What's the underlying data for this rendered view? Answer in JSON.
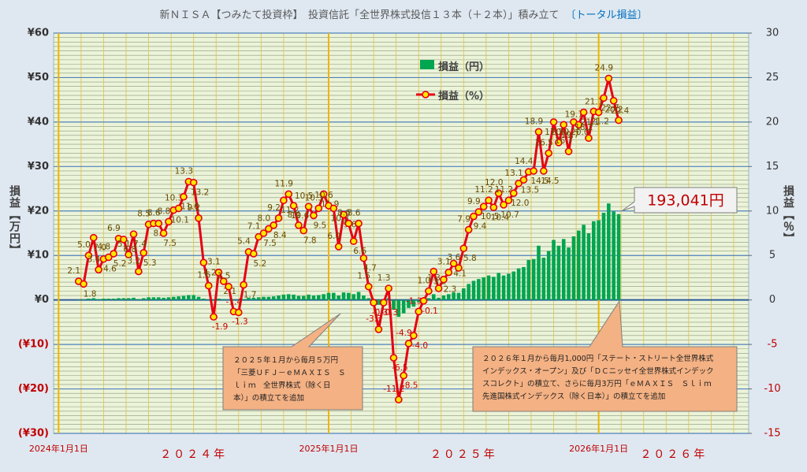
{
  "chart_data": {
    "type": "bar-line",
    "title": "新ＮＩＳＡ【つみたて投資枠】　投資信託「全世界株式投信１３本（＋２本）」積み立て",
    "subtitle": "〔トータル損益〕",
    "y_label": "損益【万円】",
    "y2_label": "損益【％】",
    "ylim": [
      -30,
      60
    ],
    "yticks": [
      {
        "value": -30,
        "label": "(¥30)"
      },
      {
        "value": -20,
        "label": "(¥20)"
      },
      {
        "value": -10,
        "label": "(¥10)"
      },
      {
        "value": 0,
        "label": "¥0"
      },
      {
        "value": 10,
        "label": "¥10"
      },
      {
        "value": 20,
        "label": "¥20"
      },
      {
        "value": 30,
        "label": "¥30"
      },
      {
        "value": 40,
        "label": "¥40"
      },
      {
        "value": 50,
        "label": "¥50"
      },
      {
        "value": 60,
        "label": "¥60"
      }
    ],
    "y2lim": [
      -15,
      30
    ],
    "y2ticks": [
      -15,
      -10,
      -5,
      0,
      5,
      10,
      15,
      20,
      25,
      30
    ],
    "xlim": [
      -5,
      134
    ],
    "xticks": [
      {
        "value": -4,
        "label": "2024年1月1日"
      },
      {
        "value": 50,
        "label": "2025年1月1日"
      },
      {
        "value": 104,
        "label": "2026年1月1日"
      }
    ],
    "x_period_labels": [
      "２０２４年",
      "２０２５年",
      "２０２６年"
    ],
    "grid": true,
    "series": [
      {
        "name": "損益（円）",
        "color": "#00a550",
        "axis": "y",
        "values": [
          0.1,
          0.1,
          0.3,
          0.4,
          0.2,
          0.3,
          0.3,
          0.3,
          0.4,
          0.4,
          0.4,
          0.5,
          0.2,
          0.4,
          0.6,
          0.6,
          0.6,
          0.5,
          0.6,
          0.7,
          0.8,
          0.9,
          1.1,
          1.1,
          0.7,
          0.3,
          0.1,
          -0.2,
          0.3,
          0.2,
          0.1,
          -0.1,
          -0.1,
          0.2,
          0.5,
          0.5,
          0.6,
          0.7,
          0.7,
          0.8,
          1.0,
          1.2,
          1.3,
          1.2,
          0.9,
          0.9,
          1.2,
          1.0,
          1.1,
          1.3,
          1.6,
          1.6,
          1.0,
          1.7,
          1.6,
          1.3,
          1.8,
          1.0,
          0.4,
          -0.1,
          -1.1,
          -0.1,
          0.4,
          -2.2,
          -3.8,
          -3.0,
          -1.8,
          -1.5,
          -0.5,
          0.0,
          0.4,
          1.3,
          0.5,
          1.0,
          1.3,
          1.7,
          1.6,
          2.6,
          3.6,
          4.3,
          4.7,
          5.1,
          5.5,
          5.2,
          6.1,
          5.5,
          5.9,
          6.4,
          7.1,
          7.4,
          9.0,
          9.2,
          12.2,
          9.5,
          11.0,
          13.5,
          12.2,
          13.7,
          11.8,
          14.3,
          15.6,
          16.9,
          15.0,
          17.7,
          17.9,
          19.6,
          21.7,
          19.9,
          19.3
        ]
      },
      {
        "name": "損益（%）",
        "color": "#e60012",
        "marker_color": "#ffe600",
        "axis": "y2",
        "values": [
          2.1,
          1.8,
          5.0,
          7.0,
          3.4,
          4.6,
          4.8,
          5.2,
          6.9,
          6.8,
          5.1,
          7.4,
          3.2,
          5.3,
          8.5,
          8.6,
          8.6,
          7.5,
          8.8,
          10.1,
          10.3,
          11.6,
          13.3,
          13.2,
          9.2,
          4.2,
          1.6,
          -1.9,
          3.1,
          2.1,
          1.5,
          -1.3,
          -1.4,
          1.7,
          5.4,
          5.2,
          7.1,
          7.5,
          8.0,
          8.4,
          9.2,
          11.2,
          11.9,
          10.6,
          8.4,
          7.8,
          10.5,
          9.5,
          10.3,
          11.9,
          10.6,
          10.3,
          6.0,
          9.6,
          8.6,
          6.6,
          8.6,
          4.7,
          1.5,
          -0.3,
          -3.3,
          -0.3,
          1.3,
          -6.5,
          -11.2,
          -8.5,
          -4.9,
          -4.0,
          -1.3,
          -0.1,
          1.0,
          3.2,
          1.3,
          2.3,
          3.1,
          4.1,
          3.6,
          5.8,
          7.9,
          9.4,
          9.9,
          10.5,
          11.2,
          10.4,
          12.0,
          10.7,
          11.2,
          12.0,
          13.1,
          13.5,
          14.4,
          14.5,
          18.9,
          14.5,
          16.5,
          20.0,
          17.7,
          19.7,
          16.7,
          20.0,
          19.7,
          21.1,
          18.2,
          21.2,
          21.1,
          22.7,
          24.9,
          22.4,
          20.2
        ],
        "value_labels": [
          "2.1",
          "1.8",
          "5.0",
          "7.0",
          "3.4",
          "4.6",
          "4.8",
          "5.2",
          "6.9",
          "6.8",
          "5.1",
          "7.4",
          "3.2",
          "5.3",
          "8.5",
          "8.6",
          "8.6",
          "7.5",
          "8.8",
          "10.1",
          "10.3",
          "11.6",
          "13.3",
          "13.2",
          "9.2",
          "4.2",
          "1.6",
          "-1.9",
          "3.1",
          "2.1",
          "1.5",
          "-1.3",
          "-1.4",
          "1.7",
          "5.4",
          "5.2",
          "7.1",
          "7.5",
          "8.0",
          "8.4",
          "9.2",
          "11.2",
          "11.9",
          "10.6",
          "8.4",
          "7.8",
          "10.5",
          "9.5",
          "10.3",
          "11.9",
          "10.6",
          "10.3",
          "6.0",
          "9.6",
          "8.6",
          "6.6",
          "8.6",
          "4.7",
          "1.5",
          "-0.3",
          "-3.3",
          "-0.3",
          "1.3",
          "-6.5",
          "-11.2",
          "-8.5",
          "-4.9",
          "-4.0",
          "-1.3",
          "-0.1",
          "1.0",
          "3.2",
          "1.3",
          "2.3",
          "3.1",
          "4.1",
          "3.6",
          "5.8",
          "7.9",
          "9.4",
          "9.9",
          "10.5",
          "11.2",
          "10.4",
          "12.0",
          "10.7",
          "11.2",
          "12.0",
          "13.1",
          "13.5",
          "14.4",
          "14.5",
          "18.9",
          "14.5",
          "16.5",
          "20.0",
          "17.7",
          "19.7",
          "16.7",
          "20.0",
          "19.7",
          "21.1",
          "18.2",
          "21.2",
          "21.1",
          "22.7",
          "24.9",
          "22.4",
          "20.2"
        ]
      }
    ],
    "last_value_callout": "193,041円",
    "notes": [
      {
        "lines": [
          "２０２５年１月から毎月５万円",
          "「三菱ＵＦＪ－ｅＭＡＸＩＳ　Ｓ",
          "ｌｉｍ　全世界株式（除く日",
          "本）」の積立てを追加"
        ]
      },
      {
        "lines": [
          "２０２６年１月から毎月1,000円「ステート・ストリート全世界株式",
          "インデックス・オープン」及び「ＤＣニッセイ全世界株式インデック",
          "スコレクト」の積立て、さらに毎月3万円「ｅＭＡＸＩＳ　Ｓｌｉｍ",
          "先進国株式インデックス（除く日本）」の積立てを追加"
        ]
      }
    ]
  }
}
